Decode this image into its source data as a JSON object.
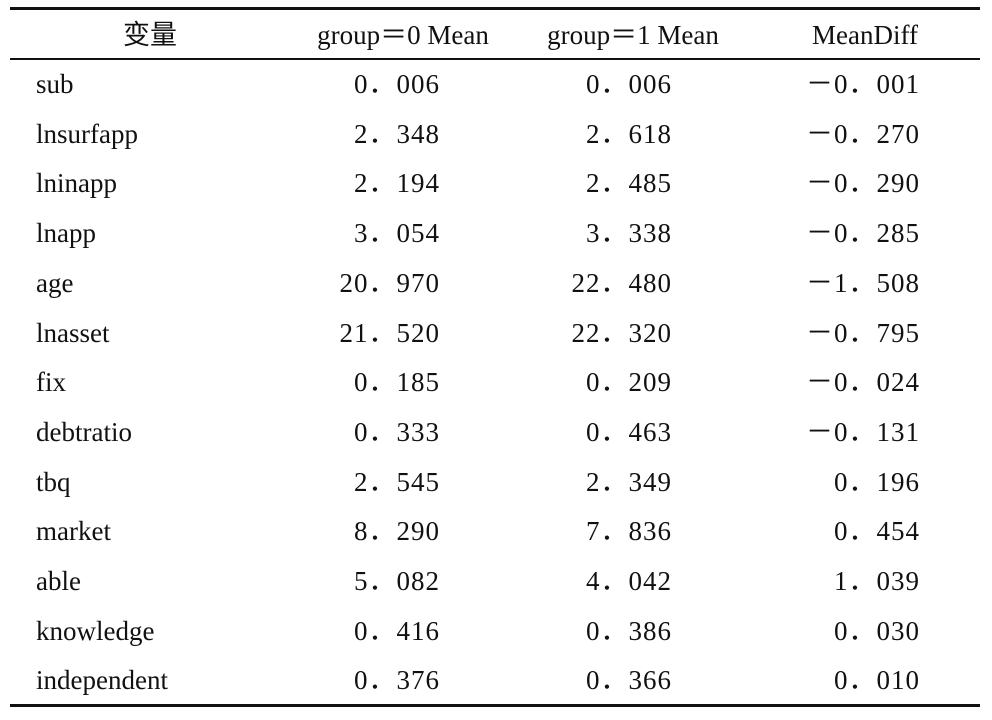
{
  "table": {
    "header": [
      "变量",
      "group＝0 Mean",
      "group＝1 Mean",
      "MeanDiff"
    ],
    "rows": [
      [
        "sub",
        "0．006",
        "0．006",
        "－0．001"
      ],
      [
        "lnsurfapp",
        "2．348",
        "2．618",
        "－0．270"
      ],
      [
        "lninapp",
        "2．194",
        "2．485",
        "－0．290"
      ],
      [
        "lnapp",
        "3．054",
        "3．338",
        "－0．285"
      ],
      [
        "age",
        "20．970",
        "22．480",
        "－1．508"
      ],
      [
        "lnasset",
        "21．520",
        "22．320",
        "－0．795"
      ],
      [
        "fix",
        "0．185",
        "0．209",
        "－0．024"
      ],
      [
        "debtratio",
        "0．333",
        "0．463",
        "－0．131"
      ],
      [
        "tbq",
        "2．545",
        "2．349",
        "0．196"
      ],
      [
        "market",
        "8．290",
        "7．836",
        "0．454"
      ],
      [
        "able",
        "5．082",
        "4．042",
        "1．039"
      ],
      [
        "knowledge",
        "0．416",
        "0．386",
        "0．030"
      ],
      [
        "independent",
        "0．376",
        "0．366",
        "0．010"
      ]
    ]
  }
}
